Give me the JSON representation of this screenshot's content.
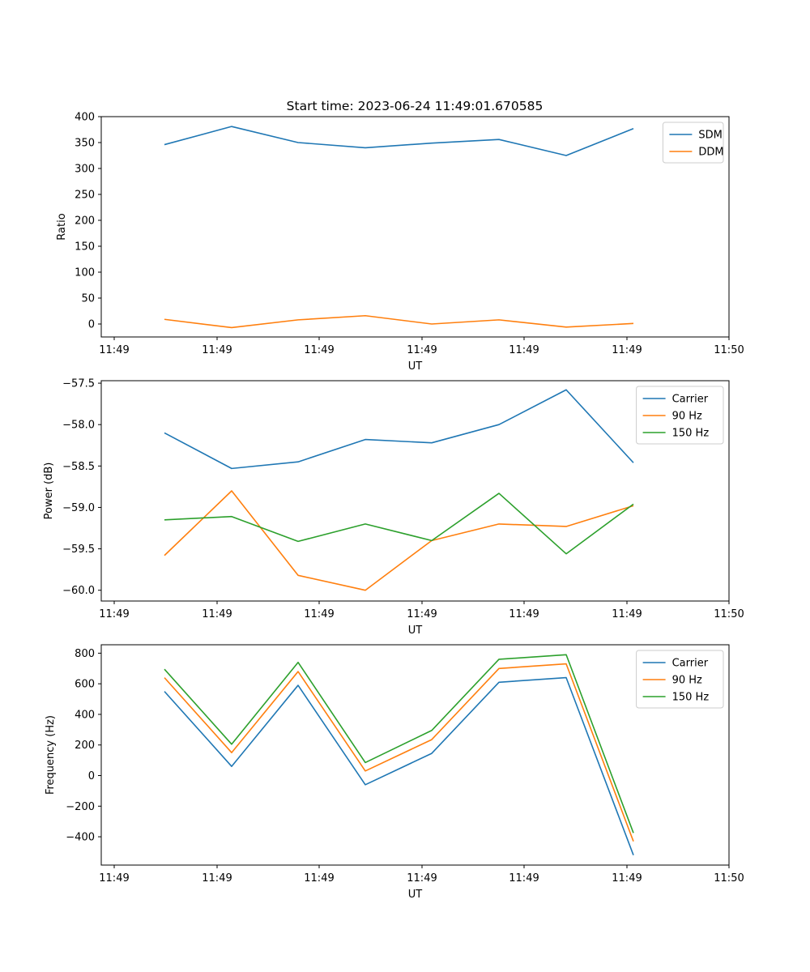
{
  "title": "Start time: 2023-06-24 11:49:01.670585",
  "colors": {
    "blue": "#1f77b4",
    "orange": "#ff7f0e",
    "green": "#2ca02c"
  },
  "chart_data": [
    {
      "type": "line",
      "title": "Start time: 2023-06-24 11:49:01.670585",
      "xlabel": "UT",
      "ylabel": "Ratio",
      "xticks": [
        "11:49",
        "11:49",
        "11:49",
        "11:49",
        "11:49",
        "11:49",
        "11:49"
      ],
      "xticks_last": "11:50",
      "yticks": [
        0,
        50,
        100,
        150,
        200,
        250,
        300,
        350,
        400
      ],
      "ylim": [
        -25,
        400
      ],
      "legend": "upper right",
      "series": [
        {
          "name": "SDM",
          "color": "#1f77b4",
          "values": [
            346,
            381,
            350,
            340,
            349,
            356,
            325,
            377
          ]
        },
        {
          "name": "DDM",
          "color": "#ff7f0e",
          "values": [
            9,
            -7,
            8,
            16,
            0,
            8,
            -6,
            1
          ]
        }
      ]
    },
    {
      "type": "line",
      "title": "",
      "xlabel": "UT",
      "ylabel": "Power (dB)",
      "xticks": [
        "11:49",
        "11:49",
        "11:49",
        "11:49",
        "11:49",
        "11:49",
        "11:49"
      ],
      "xticks_last": "11:50",
      "yticks": [
        -60.0,
        -59.5,
        -59.0,
        -58.5,
        -58.0,
        -57.5
      ],
      "ytick_labels": [
        "−60.0",
        "−59.5",
        "−59.0",
        "−58.5",
        "−58.0",
        "−57.5"
      ],
      "ylim": [
        -60.13,
        -57.47
      ],
      "legend": "upper right",
      "series": [
        {
          "name": "Carrier",
          "color": "#1f77b4",
          "values": [
            -58.1,
            -58.53,
            -58.45,
            -58.18,
            -58.22,
            -58.0,
            -57.58,
            -58.46
          ]
        },
        {
          "name": "90 Hz",
          "color": "#ff7f0e",
          "values": [
            -59.58,
            -58.8,
            -59.82,
            -60.0,
            -59.4,
            -59.2,
            -59.23,
            -58.98
          ]
        },
        {
          "name": "150 Hz",
          "color": "#2ca02c",
          "values": [
            -59.15,
            -59.11,
            -59.41,
            -59.2,
            -59.4,
            -58.83,
            -59.56,
            -58.96
          ]
        }
      ]
    },
    {
      "type": "line",
      "title": "",
      "xlabel": "UT",
      "ylabel": "Frequency (Hz)",
      "xticks": [
        "11:49",
        "11:49",
        "11:49",
        "11:49",
        "11:49",
        "11:49",
        "11:49"
      ],
      "xticks_last": "11:50",
      "yticks": [
        -400,
        -200,
        0,
        200,
        400,
        600,
        800
      ],
      "ytick_labels": [
        "−400",
        "−200",
        "0",
        "200",
        "400",
        "600",
        "800"
      ],
      "ylim": [
        -585,
        855
      ],
      "legend": "upper right",
      "series": [
        {
          "name": "Carrier",
          "color": "#1f77b4",
          "values": [
            550,
            60,
            590,
            -60,
            145,
            610,
            640,
            -520
          ]
        },
        {
          "name": "90 Hz",
          "color": "#ff7f0e",
          "values": [
            640,
            150,
            680,
            30,
            235,
            700,
            730,
            -430
          ]
        },
        {
          "name": "150 Hz",
          "color": "#2ca02c",
          "values": [
            695,
            205,
            740,
            85,
            295,
            760,
            790,
            -375
          ]
        }
      ]
    }
  ]
}
